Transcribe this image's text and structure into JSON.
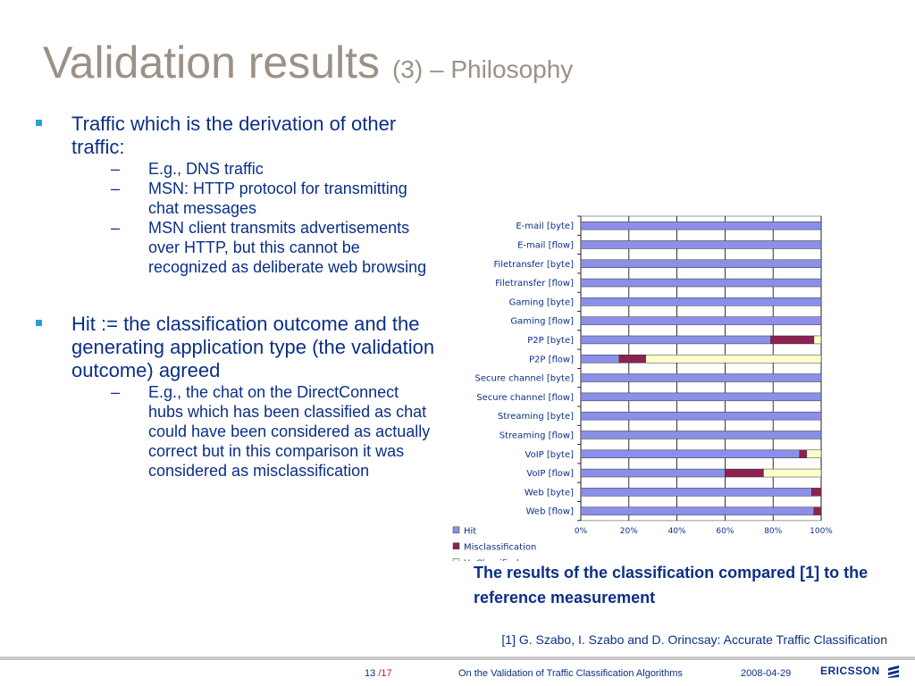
{
  "slide": {
    "title": "Validation results",
    "subtitle": "(3) – Philosophy"
  },
  "bullets": [
    {
      "text": "Traffic which is the derivation of other traffic:",
      "subs": [
        "E.g., DNS traffic",
        "MSN: HTTP protocol for transmitting chat messages",
        "MSN client transmits advertisements over HTTP, but this cannot be recognized as deliberate web browsing"
      ]
    },
    {
      "text": "Hit := the classification outcome and the generating application type (the validation outcome) agreed",
      "subs": [
        "E.g., the chat on the DirectConnect hubs which has been classified as chat could have been considered as actually correct but in this comparison it was considered as misclassification"
      ]
    }
  ],
  "caption": "The results of the classification compared [1] to the reference measurement",
  "reference": "[1] G. Szabo, I. Szabo and  D. Orincsay: Accurate Traffic Classification",
  "footer": {
    "page": "13",
    "total": "/17",
    "presentation_title": "On the Validation of Traffic Classification Algorithms",
    "date": "2008-04-29",
    "logo_text": "ERICSSON"
  },
  "chart_data": {
    "type": "bar",
    "orientation": "horizontal",
    "stacked": "percent",
    "categories": [
      "E-mail [byte]",
      "E-mail [flow]",
      "Filetransfer [byte]",
      "Filetransfer [flow]",
      "Gaming [byte]",
      "Gaming [flow]",
      "P2P [byte]",
      "P2P [flow]",
      "Secure channel [byte]",
      "Secure channel [flow]",
      "Streaming [byte]",
      "Streaming [flow]",
      "VoIP [byte]",
      "VoIP [flow]",
      "Web [byte]",
      "Web [flow]"
    ],
    "series": [
      {
        "name": "Hit",
        "color": "#8b8fe8",
        "values": [
          100,
          100,
          100,
          100,
          100,
          100,
          79,
          16,
          100,
          100,
          100,
          100,
          91,
          60,
          96,
          97
        ]
      },
      {
        "name": "Misclassification",
        "color": "#8b2252",
        "values": [
          0,
          0,
          0,
          0,
          0,
          0,
          18,
          11,
          0,
          0,
          0,
          0,
          3,
          16,
          4,
          3
        ]
      },
      {
        "name": "UnClassified",
        "color": "#ffffcc",
        "values": [
          0,
          0,
          0,
          0,
          0,
          0,
          3,
          73,
          0,
          0,
          0,
          0,
          6,
          24,
          0,
          0
        ]
      }
    ],
    "xticks": [
      "0%",
      "20%",
      "40%",
      "60%",
      "80%",
      "100%"
    ],
    "xlim": [
      0,
      100
    ],
    "grid": true,
    "legend": "bottom-left"
  }
}
